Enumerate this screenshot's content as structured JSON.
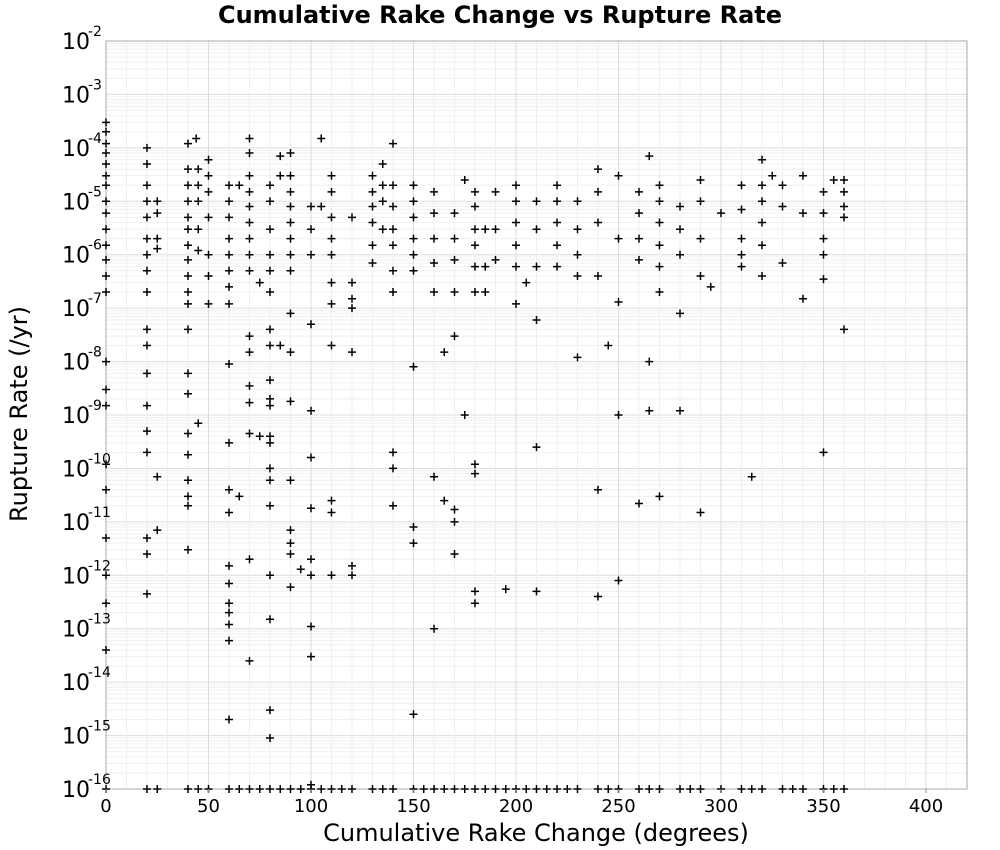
{
  "chart_data": {
    "type": "scatter",
    "title": "Cumulative Rake Change vs Rupture Rate",
    "xlabel": "Cumulative Rake Change (degrees)",
    "ylabel": "Rupture Rate (/yr)",
    "xlim": [
      0,
      420
    ],
    "ylim": [
      1e-16,
      0.01
    ],
    "yscale": "log",
    "grid": true,
    "marker": "plus",
    "marker_color": "#000000",
    "xticks": [
      "0",
      "50",
      "100",
      "150",
      "200",
      "250",
      "300",
      "350",
      "400"
    ],
    "yticks": [
      {
        "base": "10",
        "exp": "-16"
      },
      {
        "base": "10",
        "exp": "-15"
      },
      {
        "base": "10",
        "exp": "-14"
      },
      {
        "base": "10",
        "exp": "-13"
      },
      {
        "base": "10",
        "exp": "-12"
      },
      {
        "base": "10",
        "exp": "-11"
      },
      {
        "base": "10",
        "exp": "-10"
      },
      {
        "base": "10",
        "exp": "-9"
      },
      {
        "base": "10",
        "exp": "-8"
      },
      {
        "base": "10",
        "exp": "-7"
      },
      {
        "base": "10",
        "exp": "-6"
      },
      {
        "base": "10",
        "exp": "-5"
      },
      {
        "base": "10",
        "exp": "-4"
      },
      {
        "base": "10",
        "exp": "-3"
      },
      {
        "base": "10",
        "exp": "-2"
      }
    ],
    "points": [
      [
        0,
        0.0003
      ],
      [
        0,
        0.0002
      ],
      [
        0,
        0.00012
      ],
      [
        0,
        8e-05
      ],
      [
        0,
        5e-05
      ],
      [
        0,
        3e-05
      ],
      [
        0,
        2e-05
      ],
      [
        0,
        1e-05
      ],
      [
        0,
        6e-06
      ],
      [
        0,
        3e-06
      ],
      [
        0,
        1.5e-06
      ],
      [
        0,
        8e-07
      ],
      [
        0,
        4e-07
      ],
      [
        0,
        2e-07
      ],
      [
        0,
        1e-08
      ],
      [
        0,
        3e-09
      ],
      [
        0,
        1.5e-09
      ],
      [
        0,
        1.2e-10
      ],
      [
        0,
        4e-11
      ],
      [
        0,
        5e-12
      ],
      [
        0,
        1e-12
      ],
      [
        0,
        3e-13
      ],
      [
        0,
        4e-14
      ],
      [
        20,
        0.0001
      ],
      [
        20,
        5e-05
      ],
      [
        20,
        2e-05
      ],
      [
        20,
        1e-05
      ],
      [
        20,
        5e-06
      ],
      [
        20,
        2e-06
      ],
      [
        20,
        1e-06
      ],
      [
        20,
        5e-07
      ],
      [
        20,
        2e-07
      ],
      [
        20,
        4e-08
      ],
      [
        20,
        2e-08
      ],
      [
        20,
        6e-09
      ],
      [
        20,
        1.5e-09
      ],
      [
        20,
        5e-10
      ],
      [
        20,
        2e-10
      ],
      [
        20,
        5e-12
      ],
      [
        20,
        2.5e-12
      ],
      [
        20,
        4.5e-13
      ],
      [
        25,
        1e-05
      ],
      [
        25,
        6e-06
      ],
      [
        25,
        2e-06
      ],
      [
        25,
        1.3e-06
      ],
      [
        25,
        7e-11
      ],
      [
        25,
        7e-12
      ],
      [
        40,
        0.00012
      ],
      [
        40,
        4e-05
      ],
      [
        40,
        2e-05
      ],
      [
        40,
        1e-05
      ],
      [
        40,
        5e-06
      ],
      [
        40,
        3e-06
      ],
      [
        40,
        1.5e-06
      ],
      [
        40,
        8e-07
      ],
      [
        40,
        4e-07
      ],
      [
        40,
        2e-07
      ],
      [
        40,
        1.2e-07
      ],
      [
        40,
        4e-08
      ],
      [
        40,
        6e-09
      ],
      [
        40,
        2.5e-09
      ],
      [
        40,
        4.5e-10
      ],
      [
        40,
        1.8e-10
      ],
      [
        40,
        6e-11
      ],
      [
        40,
        3e-11
      ],
      [
        40,
        2e-11
      ],
      [
        40,
        3e-12
      ],
      [
        44,
        0.00015
      ],
      [
        45,
        4e-05
      ],
      [
        45,
        2e-05
      ],
      [
        45,
        1e-05
      ],
      [
        45,
        3e-06
      ],
      [
        45,
        1.2e-06
      ],
      [
        45,
        7e-10
      ],
      [
        50,
        6e-05
      ],
      [
        50,
        3e-05
      ],
      [
        50,
        1.5e-05
      ],
      [
        50,
        5e-06
      ],
      [
        50,
        1e-06
      ],
      [
        50,
        4e-07
      ],
      [
        50,
        1.2e-07
      ],
      [
        60,
        2e-05
      ],
      [
        60,
        1e-05
      ],
      [
        60,
        5e-06
      ],
      [
        60,
        2e-06
      ],
      [
        60,
        1e-06
      ],
      [
        60,
        5e-07
      ],
      [
        60,
        2.5e-07
      ],
      [
        60,
        1.2e-07
      ],
      [
        60,
        9e-09
      ],
      [
        60,
        3e-10
      ],
      [
        60,
        4e-11
      ],
      [
        60,
        1.5e-11
      ],
      [
        60,
        1.5e-12
      ],
      [
        60,
        7e-13
      ],
      [
        60,
        3e-13
      ],
      [
        60,
        2e-13
      ],
      [
        60,
        1.2e-13
      ],
      [
        60,
        6e-14
      ],
      [
        60,
        2e-15
      ],
      [
        65,
        2e-05
      ],
      [
        65,
        3e-11
      ],
      [
        70,
        0.00015
      ],
      [
        70,
        8e-05
      ],
      [
        70,
        3e-05
      ],
      [
        70,
        1.5e-05
      ],
      [
        70,
        8e-06
      ],
      [
        70,
        4e-06
      ],
      [
        70,
        2e-06
      ],
      [
        70,
        1e-06
      ],
      [
        70,
        5e-07
      ],
      [
        70,
        3e-08
      ],
      [
        70,
        1.5e-08
      ],
      [
        70,
        3.5e-09
      ],
      [
        70,
        1.7e-09
      ],
      [
        70,
        4.5e-10
      ],
      [
        70,
        2e-12
      ],
      [
        70,
        2.5e-14
      ],
      [
        75,
        3e-07
      ],
      [
        75,
        4e-10
      ],
      [
        80,
        2e-05
      ],
      [
        80,
        1e-05
      ],
      [
        80,
        3e-06
      ],
      [
        80,
        1e-06
      ],
      [
        80,
        5e-07
      ],
      [
        80,
        2e-07
      ],
      [
        80,
        4e-08
      ],
      [
        80,
        2e-08
      ],
      [
        80,
        4.5e-09
      ],
      [
        80,
        2e-09
      ],
      [
        80,
        1.5e-09
      ],
      [
        80,
        4e-10
      ],
      [
        80,
        3e-10
      ],
      [
        80,
        1e-10
      ],
      [
        80,
        6e-11
      ],
      [
        80,
        2e-11
      ],
      [
        80,
        1e-12
      ],
      [
        80,
        1.5e-13
      ],
      [
        80,
        3e-15
      ],
      [
        80,
        9e-16
      ],
      [
        85,
        7e-05
      ],
      [
        85,
        3e-05
      ],
      [
        85,
        2e-08
      ],
      [
        90,
        8e-05
      ],
      [
        90,
        3e-05
      ],
      [
        90,
        1.5e-05
      ],
      [
        90,
        8e-06
      ],
      [
        90,
        4e-06
      ],
      [
        90,
        2e-06
      ],
      [
        90,
        1e-06
      ],
      [
        90,
        5e-07
      ],
      [
        90,
        8e-08
      ],
      [
        90,
        1.5e-08
      ],
      [
        90,
        1.8e-09
      ],
      [
        90,
        6e-11
      ],
      [
        90,
        7e-12
      ],
      [
        90,
        4e-12
      ],
      [
        90,
        2.5e-12
      ],
      [
        90,
        6e-13
      ],
      [
        95,
        1.3e-12
      ],
      [
        100,
        8e-06
      ],
      [
        100,
        3e-06
      ],
      [
        100,
        1e-06
      ],
      [
        100,
        5e-08
      ],
      [
        100,
        1.2e-09
      ],
      [
        100,
        1.6e-10
      ],
      [
        100,
        1.8e-11
      ],
      [
        100,
        2e-12
      ],
      [
        100,
        1e-12
      ],
      [
        100,
        1.1e-13
      ],
      [
        100,
        3e-14
      ],
      [
        100,
        1.2e-16
      ],
      [
        105,
        0.00015
      ],
      [
        105,
        8e-06
      ],
      [
        110,
        3e-05
      ],
      [
        110,
        1.5e-05
      ],
      [
        110,
        5e-06
      ],
      [
        110,
        2e-06
      ],
      [
        110,
        1e-06
      ],
      [
        110,
        3e-07
      ],
      [
        110,
        1.2e-07
      ],
      [
        110,
        2e-08
      ],
      [
        110,
        2.5e-11
      ],
      [
        110,
        1.5e-11
      ],
      [
        110,
        1e-12
      ],
      [
        120,
        5e-06
      ],
      [
        120,
        3e-07
      ],
      [
        120,
        1.5e-07
      ],
      [
        120,
        1e-07
      ],
      [
        120,
        1.5e-08
      ],
      [
        120,
        1.5e-12
      ],
      [
        120,
        1e-12
      ],
      [
        130,
        3e-05
      ],
      [
        130,
        1.5e-05
      ],
      [
        130,
        8e-06
      ],
      [
        130,
        4e-06
      ],
      [
        130,
        1.5e-06
      ],
      [
        130,
        7e-07
      ],
      [
        135,
        5e-05
      ],
      [
        135,
        2e-05
      ],
      [
        135,
        1e-05
      ],
      [
        135,
        3e-06
      ],
      [
        140,
        0.00012
      ],
      [
        140,
        2e-05
      ],
      [
        140,
        8e-06
      ],
      [
        140,
        3e-06
      ],
      [
        140,
        1.5e-06
      ],
      [
        140,
        5e-07
      ],
      [
        140,
        2e-07
      ],
      [
        140,
        2e-10
      ],
      [
        140,
        1e-10
      ],
      [
        140,
        2e-11
      ],
      [
        150,
        2e-05
      ],
      [
        150,
        1e-05
      ],
      [
        150,
        5e-06
      ],
      [
        150,
        2e-06
      ],
      [
        150,
        1e-06
      ],
      [
        150,
        5e-07
      ],
      [
        150,
        8e-09
      ],
      [
        150,
        8e-12
      ],
      [
        150,
        4e-12
      ],
      [
        150,
        2.5e-15
      ],
      [
        160,
        1.5e-05
      ],
      [
        160,
        6e-06
      ],
      [
        160,
        2e-06
      ],
      [
        160,
        7e-07
      ],
      [
        160,
        2e-07
      ],
      [
        160,
        7e-11
      ],
      [
        160,
        1e-13
      ],
      [
        165,
        1.5e-08
      ],
      [
        165,
        2.5e-11
      ],
      [
        170,
        6e-06
      ],
      [
        170,
        2e-06
      ],
      [
        170,
        8e-07
      ],
      [
        170,
        2e-07
      ],
      [
        170,
        3e-08
      ],
      [
        170,
        1.7e-11
      ],
      [
        170,
        1e-11
      ],
      [
        170,
        2.5e-12
      ],
      [
        175,
        2.5e-05
      ],
      [
        175,
        1e-09
      ],
      [
        180,
        1.5e-05
      ],
      [
        180,
        8e-06
      ],
      [
        180,
        3e-06
      ],
      [
        180,
        1.5e-06
      ],
      [
        180,
        6e-07
      ],
      [
        180,
        2e-07
      ],
      [
        180,
        1.2e-10
      ],
      [
        180,
        8e-11
      ],
      [
        180,
        5e-13
      ],
      [
        180,
        3e-13
      ],
      [
        185,
        3e-06
      ],
      [
        185,
        6e-07
      ],
      [
        185,
        2e-07
      ],
      [
        190,
        1.5e-05
      ],
      [
        190,
        3e-06
      ],
      [
        190,
        8e-07
      ],
      [
        195,
        5.5e-13
      ],
      [
        200,
        2e-05
      ],
      [
        200,
        1e-05
      ],
      [
        200,
        4e-06
      ],
      [
        200,
        1.5e-06
      ],
      [
        200,
        6e-07
      ],
      [
        200,
        1.2e-07
      ],
      [
        205,
        3e-07
      ],
      [
        210,
        1e-05
      ],
      [
        210,
        3e-06
      ],
      [
        210,
        6e-07
      ],
      [
        210,
        6e-08
      ],
      [
        210,
        2.5e-10
      ],
      [
        210,
        5e-13
      ],
      [
        220,
        2e-05
      ],
      [
        220,
        1e-05
      ],
      [
        220,
        4e-06
      ],
      [
        220,
        1.5e-06
      ],
      [
        220,
        6e-07
      ],
      [
        230,
        1e-05
      ],
      [
        230,
        3e-06
      ],
      [
        230,
        1e-06
      ],
      [
        230,
        4e-07
      ],
      [
        230,
        1.2e-08
      ],
      [
        240,
        4e-05
      ],
      [
        240,
        1.5e-05
      ],
      [
        240,
        4e-06
      ],
      [
        240,
        4e-07
      ],
      [
        240,
        4e-11
      ],
      [
        240,
        4e-13
      ],
      [
        245,
        2e-08
      ],
      [
        250,
        3e-05
      ],
      [
        250,
        2e-06
      ],
      [
        250,
        1.3e-07
      ],
      [
        250,
        1e-09
      ],
      [
        250,
        8e-13
      ],
      [
        260,
        1.5e-05
      ],
      [
        260,
        6e-06
      ],
      [
        260,
        2e-06
      ],
      [
        260,
        8e-07
      ],
      [
        260,
        2.2e-11
      ],
      [
        265,
        7e-05
      ],
      [
        265,
        1e-08
      ],
      [
        265,
        1.2e-09
      ],
      [
        270,
        2e-05
      ],
      [
        270,
        1e-05
      ],
      [
        270,
        4e-06
      ],
      [
        270,
        1.5e-06
      ],
      [
        270,
        6e-07
      ],
      [
        270,
        2e-07
      ],
      [
        270,
        3e-11
      ],
      [
        280,
        8e-06
      ],
      [
        280,
        3e-06
      ],
      [
        280,
        1e-06
      ],
      [
        280,
        8e-08
      ],
      [
        280,
        1.2e-09
      ],
      [
        290,
        2.5e-05
      ],
      [
        290,
        1e-05
      ],
      [
        290,
        2e-06
      ],
      [
        290,
        4e-07
      ],
      [
        290,
        1.5e-11
      ],
      [
        295,
        2.5e-07
      ],
      [
        300,
        6e-06
      ],
      [
        310,
        2e-05
      ],
      [
        310,
        7e-06
      ],
      [
        310,
        2e-06
      ],
      [
        310,
        1e-06
      ],
      [
        310,
        6e-07
      ],
      [
        315,
        7e-11
      ],
      [
        320,
        6e-05
      ],
      [
        320,
        2e-05
      ],
      [
        320,
        1e-05
      ],
      [
        320,
        4e-06
      ],
      [
        320,
        1.5e-06
      ],
      [
        320,
        4e-07
      ],
      [
        325,
        3e-05
      ],
      [
        330,
        2e-05
      ],
      [
        330,
        8e-06
      ],
      [
        330,
        7e-07
      ],
      [
        340,
        3e-05
      ],
      [
        340,
        6e-06
      ],
      [
        340,
        1.5e-07
      ],
      [
        350,
        1.5e-05
      ],
      [
        350,
        6e-06
      ],
      [
        350,
        2e-06
      ],
      [
        350,
        1e-06
      ],
      [
        350,
        3.5e-07
      ],
      [
        350,
        2e-10
      ],
      [
        355,
        2.5e-05
      ],
      [
        360,
        2.5e-05
      ],
      [
        360,
        1.5e-05
      ],
      [
        360,
        8e-06
      ],
      [
        360,
        5e-06
      ],
      [
        360,
        4e-08
      ],
      [
        0,
        1e-16
      ],
      [
        20,
        1e-16
      ],
      [
        25,
        1e-16
      ],
      [
        40,
        1e-16
      ],
      [
        45,
        1e-16
      ],
      [
        50,
        1e-16
      ],
      [
        60,
        1e-16
      ],
      [
        65,
        1e-16
      ],
      [
        70,
        1e-16
      ],
      [
        75,
        1e-16
      ],
      [
        80,
        1e-16
      ],
      [
        85,
        1e-16
      ],
      [
        90,
        1e-16
      ],
      [
        95,
        1e-16
      ],
      [
        100,
        1e-16
      ],
      [
        105,
        1e-16
      ],
      [
        110,
        1e-16
      ],
      [
        115,
        1e-16
      ],
      [
        120,
        1e-16
      ],
      [
        130,
        1e-16
      ],
      [
        135,
        1e-16
      ],
      [
        140,
        1e-16
      ],
      [
        150,
        1e-16
      ],
      [
        155,
        1e-16
      ],
      [
        160,
        1e-16
      ],
      [
        165,
        1e-16
      ],
      [
        170,
        1e-16
      ],
      [
        175,
        1e-16
      ],
      [
        180,
        1e-16
      ],
      [
        185,
        1e-16
      ],
      [
        190,
        1e-16
      ],
      [
        195,
        1e-16
      ],
      [
        200,
        1e-16
      ],
      [
        205,
        1e-16
      ],
      [
        210,
        1e-16
      ],
      [
        215,
        1e-16
      ],
      [
        220,
        1e-16
      ],
      [
        225,
        1e-16
      ],
      [
        230,
        1e-16
      ],
      [
        240,
        1e-16
      ],
      [
        245,
        1e-16
      ],
      [
        250,
        1e-16
      ],
      [
        260,
        1e-16
      ],
      [
        265,
        1e-16
      ],
      [
        270,
        1e-16
      ],
      [
        280,
        1e-16
      ],
      [
        285,
        1e-16
      ],
      [
        290,
        1e-16
      ],
      [
        300,
        1e-16
      ],
      [
        310,
        1e-16
      ],
      [
        315,
        1e-16
      ],
      [
        320,
        1e-16
      ],
      [
        330,
        1e-16
      ],
      [
        335,
        1e-16
      ],
      [
        340,
        1e-16
      ],
      [
        350,
        1e-16
      ],
      [
        355,
        1e-16
      ],
      [
        360,
        1e-16
      ]
    ]
  }
}
